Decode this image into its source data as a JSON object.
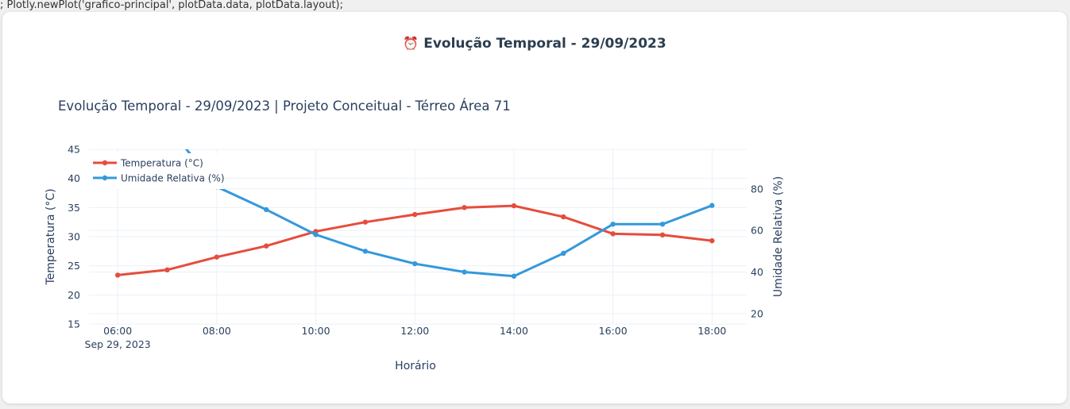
{
  "page": {
    "code_top": "; Plotly.newPlot('grafico-principal', plotData.data, plotData.layout);",
    "code_bottom": "",
    "card_title": "Evolução Temporal - 29/09/2023",
    "card_title_icon": "alarm-clock-icon"
  },
  "chart_data": {
    "type": "line",
    "title": "Evolução Temporal - 29/09/2023 | Projeto Conceitual - Térreo Área 71",
    "xlabel": "Horário",
    "ylabel": "Temperatura (°C)",
    "y2label": "Umidade Relativa (%)",
    "x": [
      "06:00",
      "07:00",
      "08:00",
      "09:00",
      "10:00",
      "11:00",
      "12:00",
      "13:00",
      "14:00",
      "15:00",
      "16:00",
      "17:00",
      "18:00"
    ],
    "x_hours": [
      6,
      7,
      8,
      9,
      10,
      11,
      12,
      13,
      14,
      15,
      16,
      17,
      18
    ],
    "x_ticks": [
      "06:00",
      "08:00",
      "10:00",
      "12:00",
      "14:00",
      "16:00",
      "18:00"
    ],
    "x_tick_hours": [
      6,
      8,
      10,
      12,
      14,
      16,
      18
    ],
    "x_date_label": "Sep 29, 2023",
    "xlim_hours": [
      5.42,
      18.7
    ],
    "ylim": [
      15,
      45
    ],
    "y_ticks": [
      "15",
      "20",
      "25",
      "30",
      "35",
      "40",
      "45"
    ],
    "y2lim": [
      15,
      99
    ],
    "y2_ticks": [
      "20",
      "40",
      "60",
      "80"
    ],
    "grid": true,
    "legend_placement": "top-left",
    "series": [
      {
        "name": "Temperatura (°C)",
        "axis": "y",
        "color": "#e74c3c",
        "values": [
          23.4,
          24.3,
          26.5,
          28.4,
          30.9,
          32.5,
          33.8,
          35.0,
          35.3,
          33.4,
          30.5,
          30.3,
          29.3
        ]
      },
      {
        "name": "Umidade Relativa (%)",
        "axis": "y2",
        "color": "#3498db",
        "values": [
          null,
          null,
          81,
          70,
          58,
          50,
          44,
          40,
          38,
          49,
          63,
          63,
          72
        ]
      }
    ]
  }
}
